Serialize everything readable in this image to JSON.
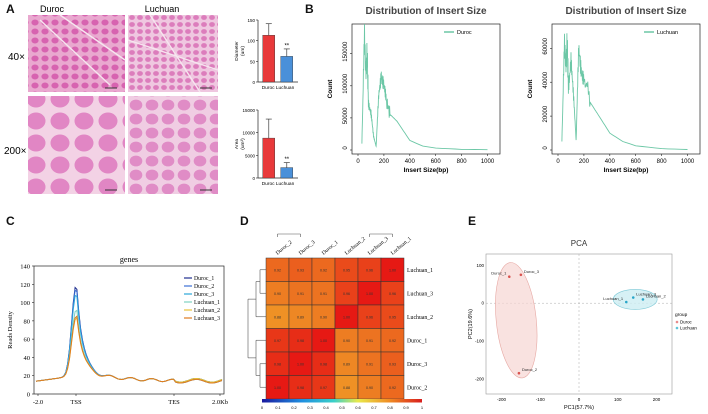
{
  "panels": {
    "A": {
      "label": "A",
      "col_labels": [
        "Duroc",
        "Luchuan"
      ],
      "row_labels": [
        "40×",
        "200×"
      ],
      "bar_top": {
        "ylabel_line1": "Diameter",
        "ylabel_line2": "(um)",
        "yticks": [
          "0",
          "50",
          "100",
          "150"
        ],
        "ymax": 150,
        "categories": [
          "Duroc",
          "Luchuan"
        ],
        "values": [
          113,
          62
        ],
        "errors": [
          28,
          18
        ],
        "sig": "**",
        "colors": [
          "#e8393a",
          "#4a90d9"
        ],
        "xlabel": "Duroc Luchuan"
      },
      "bar_bottom": {
        "ylabel_line1": "Area",
        "ylabel_line2": "(um²)",
        "yticks": [
          "0",
          "5000",
          "10000",
          "15000"
        ],
        "ymax": 15000,
        "categories": [
          "Duroc",
          "Luchuan"
        ],
        "values": [
          8800,
          2300
        ],
        "errors": [
          4200,
          1100
        ],
        "sig": "**",
        "colors": [
          "#e8393a",
          "#4a90d9"
        ],
        "xlabel": "Duroc Luchuan"
      }
    },
    "B": {
      "label": "B",
      "left": {
        "title": "Distribution of Insert Size",
        "legend": "Duroc",
        "xlabel": "Insert Size(bp)",
        "ylabel": "Count",
        "xticks": [
          "0",
          "200",
          "400",
          "600",
          "800",
          "1000"
        ],
        "yticks": [
          "0",
          "50000",
          "100000",
          "150000"
        ],
        "xmax": 1050,
        "ymax": 190000
      },
      "right": {
        "title": "Distribution of Insert Size",
        "legend": "Luchuan",
        "xlabel": "Insert Size(bp)",
        "ylabel": "Count",
        "xticks": [
          "0",
          "200",
          "400",
          "600",
          "800",
          "1000"
        ],
        "yticks": [
          "0",
          "20000",
          "40000",
          "60000"
        ],
        "xmax": 1050,
        "ymax": 72000
      }
    },
    "C": {
      "label": "C",
      "title": "genes",
      "ylabel": "Reads Density",
      "yticks": [
        "0",
        "20",
        "40",
        "60",
        "80",
        "100",
        "120",
        "140"
      ],
      "xticks": [
        "-2.0",
        "TSS",
        "TES",
        "2.0Kb"
      ],
      "legend": [
        {
          "name": "Duroc_1",
          "color": "#1f2e8f"
        },
        {
          "name": "Duroc_2",
          "color": "#3b6fd6"
        },
        {
          "name": "Duroc_3",
          "color": "#2aa6d9"
        },
        {
          "name": "Luchuan_1",
          "color": "#7fd1c0"
        },
        {
          "name": "Luchuan_2",
          "color": "#e8c23a"
        },
        {
          "name": "Luchuan_3",
          "color": "#e07a1f"
        }
      ]
    },
    "D": {
      "label": "D",
      "col_labels": [
        "Duroc_2",
        "Duroc_3",
        "Duroc_1",
        "Luchuan_2",
        "Luchuan_3",
        "Luchuan_1"
      ],
      "row_labels": [
        "Luchuan_1",
        "Luchuan_3",
        "Luchuan_2",
        "Duroc_1",
        "Duroc_3",
        "Duroc_2"
      ],
      "matrix": [
        [
          0.92,
          0.93,
          0.92,
          0.95,
          0.96,
          1.0
        ],
        [
          0.9,
          0.91,
          0.91,
          0.96,
          1.0,
          0.96
        ],
        [
          0.88,
          0.89,
          0.9,
          1.0,
          0.96,
          0.95
        ],
        [
          0.97,
          0.98,
          1.0,
          0.9,
          0.91,
          0.92
        ],
        [
          0.98,
          1.0,
          0.98,
          0.89,
          0.91,
          0.93
        ],
        [
          1.0,
          0.98,
          0.97,
          0.88,
          0.9,
          0.92
        ]
      ],
      "colorbar_ticks": [
        "0",
        "0.1",
        "0.2",
        "0.3",
        "0.4",
        "0.5",
        "0.6",
        "0.7",
        "0.8",
        "0.9",
        "1"
      ]
    },
    "E": {
      "label": "E",
      "title": "PCA",
      "xlabel": "PC1(57.7%)",
      "ylabel": "PC2(19.6%)",
      "xticks": [
        "-200",
        "-100",
        "0",
        "100",
        "200"
      ],
      "yticks": [
        "-200",
        "-100",
        "0",
        "100"
      ],
      "legend_title": "group",
      "legend": [
        {
          "name": "Duroc",
          "color": "#e88b8b"
        },
        {
          "name": "Luchuan",
          "color": "#5fc4d9"
        }
      ],
      "points": [
        {
          "name": "Duroc_1",
          "x": -180,
          "y": 70,
          "group": "Duroc"
        },
        {
          "name": "Duroc_3",
          "x": -150,
          "y": 75,
          "group": "Duroc"
        },
        {
          "name": "Duroc_2",
          "x": -155,
          "y": -185,
          "group": "Duroc"
        },
        {
          "name": "Luchuan_3",
          "x": 140,
          "y": 15,
          "group": "Luchuan"
        },
        {
          "name": "Luchuan_2",
          "x": 165,
          "y": 10,
          "group": "Luchuan"
        },
        {
          "name": "Luchuan_1",
          "x": 122,
          "y": 3,
          "group": "Luchuan"
        }
      ]
    }
  },
  "chart_data": [
    {
      "type": "bar",
      "categories": [
        "Duroc",
        "Luchuan"
      ],
      "values": [
        113,
        62
      ],
      "ylabel": "Diameter (um)",
      "ylim": [
        0,
        150
      ]
    },
    {
      "type": "bar",
      "categories": [
        "Duroc",
        "Luchuan"
      ],
      "values": [
        8800,
        2300
      ],
      "ylabel": "Area (um²)",
      "ylim": [
        0,
        15000
      ]
    },
    {
      "type": "line",
      "title": "Distribution of Insert Size",
      "series": [
        {
          "name": "Duroc"
        }
      ],
      "xlabel": "Insert Size(bp)",
      "ylabel": "Count",
      "x": [
        30,
        50,
        60,
        70,
        80,
        100,
        120,
        140,
        160,
        180,
        200,
        220,
        250,
        300,
        350,
        400,
        500,
        600,
        800,
        1000
      ],
      "values": [
        10000,
        180000,
        120000,
        150000,
        80000,
        60000,
        20000,
        5000,
        85000,
        125000,
        110000,
        75000,
        55000,
        45000,
        30000,
        15000,
        6000,
        3000,
        1000,
        500
      ]
    },
    {
      "type": "line",
      "title": "Distribution of Insert Size",
      "series": [
        {
          "name": "Luchuan"
        }
      ],
      "xlabel": "Insert Size(bp)",
      "ylabel": "Count",
      "x": [
        30,
        50,
        60,
        70,
        80,
        100,
        120,
        140,
        160,
        180,
        200,
        250,
        300,
        350,
        400,
        500,
        600,
        800,
        1000
      ],
      "values": [
        5000,
        63000,
        50000,
        62000,
        40000,
        55000,
        30000,
        5000,
        60000,
        50000,
        45000,
        28000,
        22000,
        16000,
        10000,
        5000,
        2500,
        800,
        300
      ]
    },
    {
      "type": "line",
      "title": "genes",
      "ylabel": "Reads Density",
      "categories": [
        "-2.0",
        "TSS",
        "TES",
        "2.0Kb"
      ]
    },
    {
      "type": "heatmap"
    },
    {
      "type": "scatter",
      "title": "PCA",
      "xlabel": "PC1(57.7%)",
      "ylabel": "PC2(19.6%)"
    }
  ]
}
